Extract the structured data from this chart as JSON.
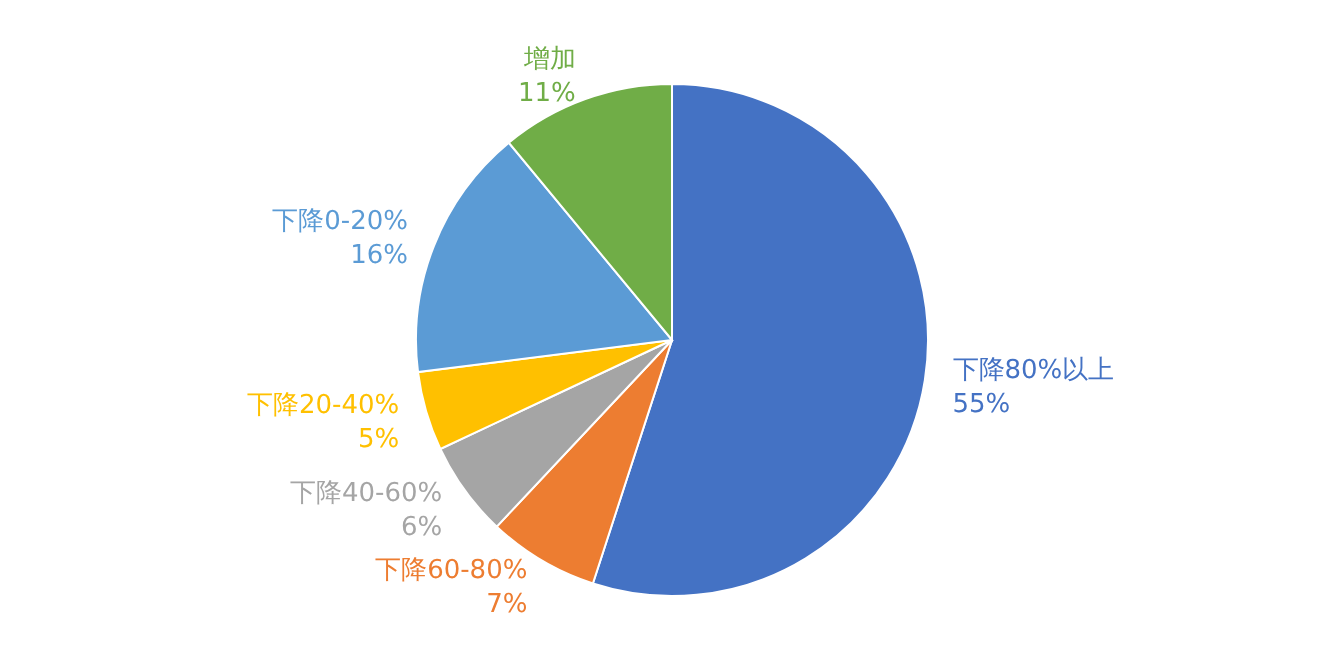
{
  "chart_data": {
    "type": "pie",
    "categories": [
      "下降80%以上",
      "下降60-80%",
      "下降40-60%",
      "下降20-40%",
      "下降0-20%",
      "增加"
    ],
    "values": [
      55,
      7,
      6,
      5,
      16,
      11
    ],
    "value_labels": [
      "55%",
      "7%",
      "6%",
      "5%",
      "16%",
      "11%"
    ],
    "colors": [
      "#4472c4",
      "#ed7d31",
      "#a5a5a5",
      "#ffc000",
      "#5b9bd5",
      "#70ad47"
    ]
  }
}
